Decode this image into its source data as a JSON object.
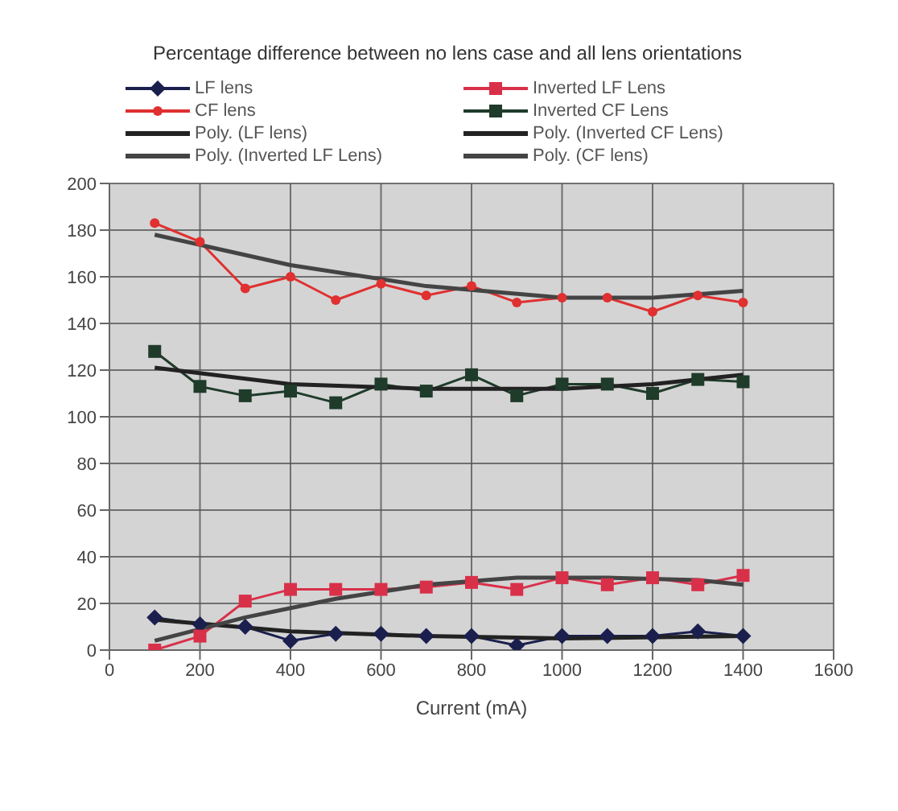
{
  "chart_data": {
    "type": "line",
    "title": "Percentage difference between no lens case and all lens orientations",
    "xlabel": "Current (mA)",
    "xlim": [
      0,
      1600
    ],
    "xticks": [
      0,
      200,
      400,
      600,
      800,
      1000,
      1200,
      1400,
      1600
    ],
    "ylim": [
      0,
      200
    ],
    "yticks": [
      0,
      20,
      40,
      60,
      80,
      100,
      120,
      140,
      160,
      180,
      200
    ],
    "grid": true,
    "legend": "top",
    "x": [
      100,
      200,
      300,
      400,
      500,
      600,
      700,
      800,
      900,
      1000,
      1100,
      1200,
      1300,
      1400
    ],
    "series": [
      {
        "name": "LF lens",
        "color": "#1a1f4d",
        "marker": "diamond",
        "values": [
          14,
          11,
          10,
          4,
          7,
          7,
          6,
          6,
          2,
          6,
          6,
          6,
          8,
          6
        ]
      },
      {
        "name": "Inverted LF Lens",
        "color": "#d9304a",
        "marker": "square",
        "values": [
          0,
          6,
          21,
          26,
          26,
          26,
          27,
          29,
          26,
          31,
          28,
          31,
          28,
          32
        ]
      },
      {
        "name": "CF lens",
        "color": "#e03030",
        "marker": "circle",
        "values": [
          183,
          175,
          155,
          160,
          150,
          157,
          152,
          156,
          149,
          151,
          151,
          145,
          152,
          149
        ]
      },
      {
        "name": "Inverted CF Lens",
        "color": "#1f3b2a",
        "marker": "square",
        "values": [
          128,
          113,
          109,
          111,
          106,
          114,
          111,
          118,
          109,
          114,
          114,
          110,
          116,
          115
        ]
      },
      {
        "name": "Poly. (LF lens)",
        "color": "#222222",
        "marker": "none",
        "x": [
          100,
          400,
          700,
          1000,
          1400
        ],
        "values": [
          13,
          8,
          6,
          5,
          6
        ]
      },
      {
        "name": "Poly. (Inverted CF Lens)",
        "color": "#222222",
        "marker": "none",
        "x": [
          100,
          400,
          700,
          1000,
          1200,
          1400
        ],
        "values": [
          121,
          114,
          112,
          112,
          114,
          118
        ]
      },
      {
        "name": "Poly. (Inverted LF Lens)",
        "color": "#444444",
        "marker": "none",
        "x": [
          100,
          300,
          500,
          700,
          900,
          1100,
          1300,
          1400
        ],
        "values": [
          4,
          14,
          22,
          28,
          31,
          31,
          30,
          28
        ]
      },
      {
        "name": "Poly. (CF lens)",
        "color": "#444444",
        "marker": "none",
        "x": [
          100,
          400,
          700,
          1000,
          1200,
          1400
        ],
        "values": [
          178,
          165,
          156,
          151,
          151,
          154
        ]
      }
    ]
  }
}
